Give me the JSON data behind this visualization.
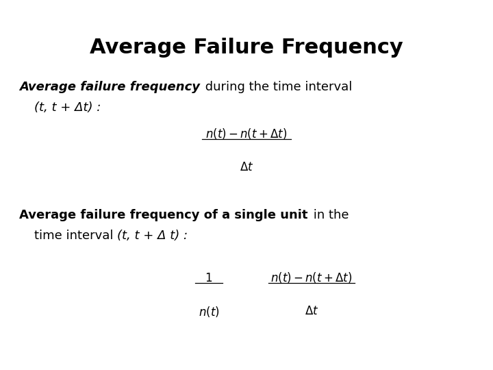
{
  "title": "Average Failure Frequency",
  "title_fontsize": 22,
  "bg_color": "#ffffff",
  "text_color": "#000000",
  "fig_width": 7.2,
  "fig_height": 5.4,
  "dpi": 100,
  "body_fontsize": 13,
  "formula_fontsize": 12,
  "para1_italic_bold": "Average failure frequency",
  "para1_normal": " during the time interval",
  "para1_line2": "(t, t + Δt) :",
  "para2_bold": "Average failure frequency of a single unit",
  "para2_normal": " in the",
  "para2_line2_normal": "time interval ",
  "para2_line2_italic": "(t, t + Δ t) :",
  "f1_num": "$n(t)-n(t+\\Delta t)$",
  "f1_den": "$\\Delta t$",
  "f2_ln": "$1$",
  "f2_ld": "$n(t)$",
  "f2_rn": "$n(t)-n(t+\\Delta t)$",
  "f2_rd": "$\\Delta t$"
}
